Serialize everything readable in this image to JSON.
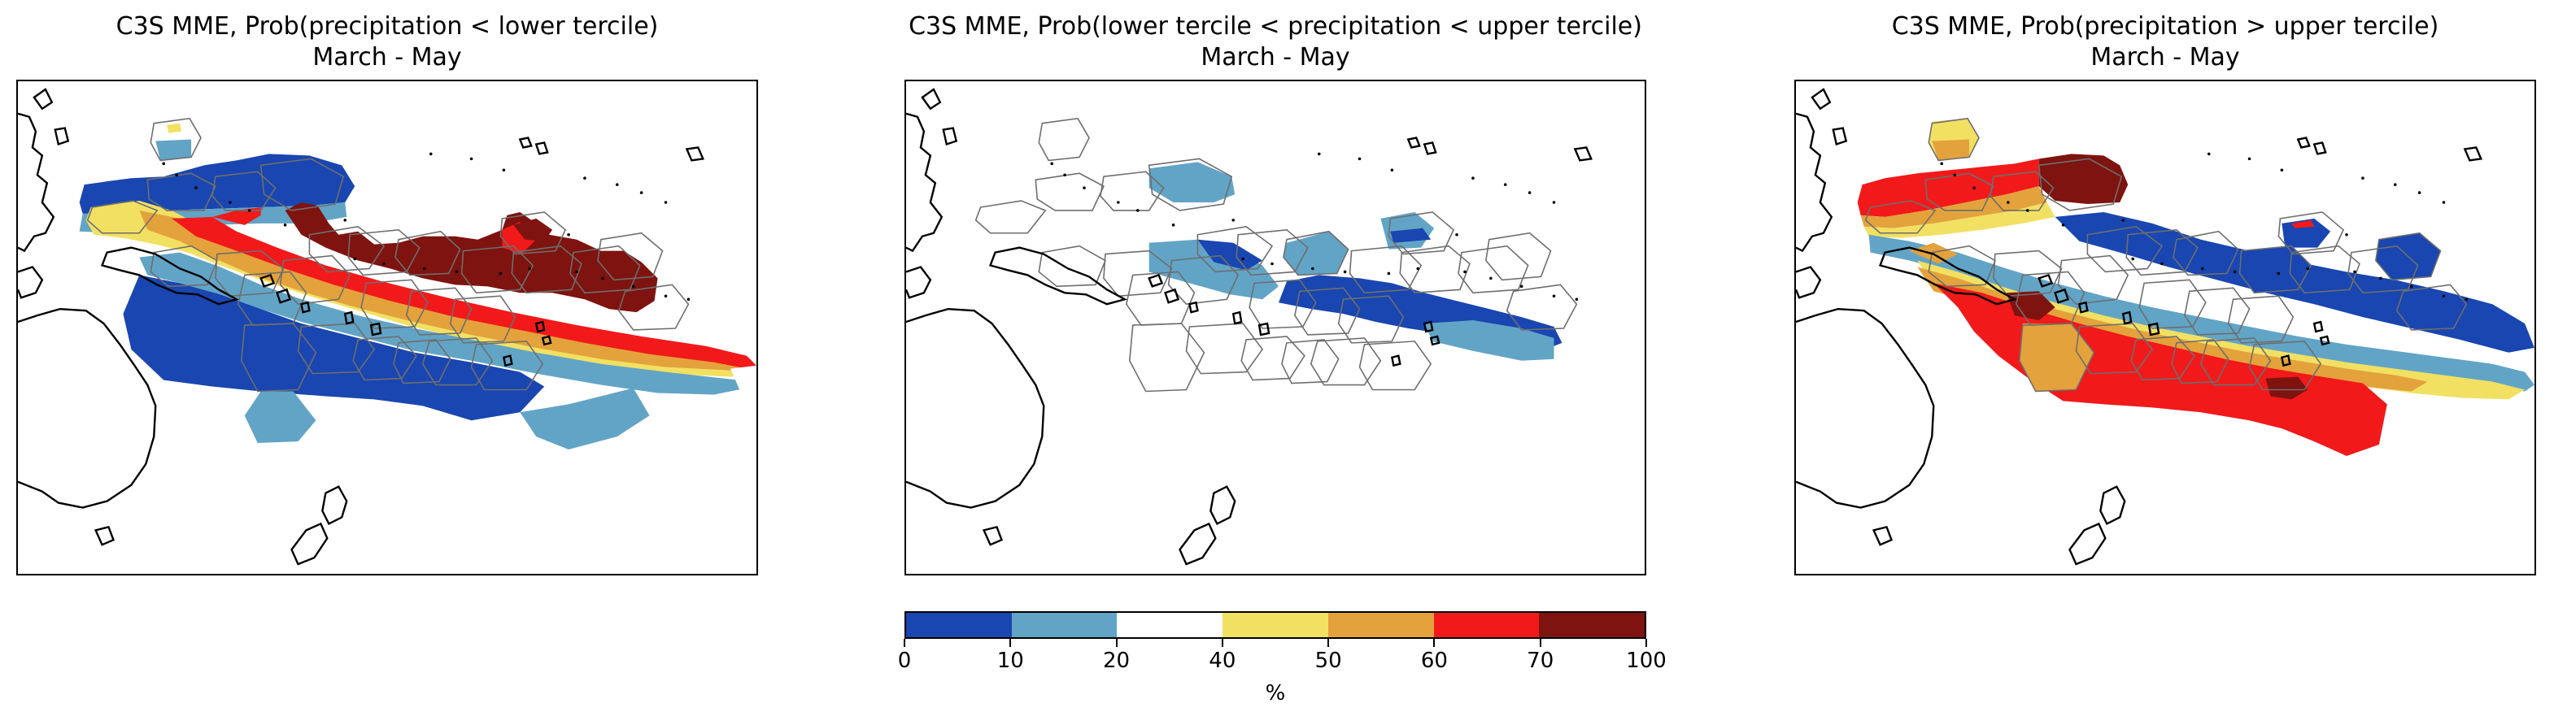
{
  "panels": [
    {
      "title_line1": "C3S MME, Prob(precipitation < lower tercile)",
      "title_line2": "March - May",
      "scenario": "below"
    },
    {
      "title_line1": "C3S MME, Prob(lower tercile < precipitation < upper tercile)",
      "title_line2": "March - May",
      "scenario": "normal"
    },
    {
      "title_line1": "C3S MME, Prob(precipitation > upper tercile)",
      "title_line2": "March - May",
      "scenario": "above"
    }
  ],
  "colorbar": {
    "unit": "%",
    "bins": [
      {
        "from": 0,
        "to": 10,
        "color": "#1946b0"
      },
      {
        "from": 10,
        "to": 20,
        "color": "#62a4c6"
      },
      {
        "from": 20,
        "to": 40,
        "color": "#ffffff"
      },
      {
        "from": 40,
        "to": 50,
        "color": "#f2e063"
      },
      {
        "from": 50,
        "to": 60,
        "color": "#e3a23b"
      },
      {
        "from": 60,
        "to": 70,
        "color": "#f2191a"
      },
      {
        "from": 70,
        "to": 100,
        "color": "#7e130f"
      }
    ],
    "tick_labels": [
      "0",
      "10",
      "20",
      "40",
      "50",
      "60",
      "70",
      "100"
    ]
  }
}
